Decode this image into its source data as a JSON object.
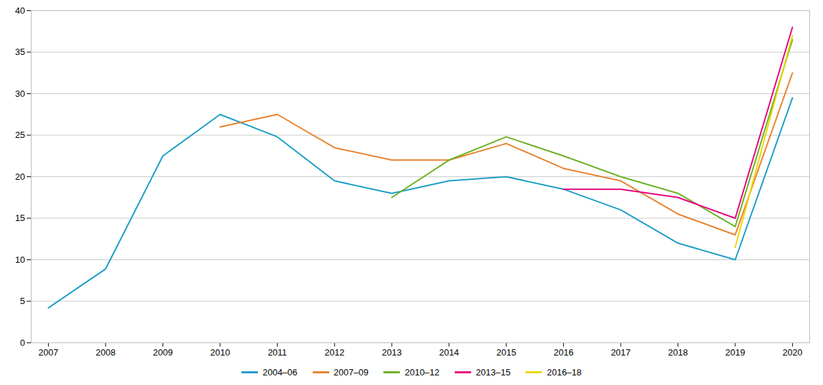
{
  "chart_data": {
    "type": "line",
    "x": [
      2007,
      2008,
      2009,
      2010,
      2011,
      2012,
      2013,
      2014,
      2015,
      2016,
      2017,
      2018,
      2019,
      2020
    ],
    "series": [
      {
        "name": "2004–06",
        "color": "#1B9DC6",
        "values": [
          4.2,
          8.9,
          22.5,
          27.5,
          24.8,
          19.5,
          18.0,
          19.5,
          20.0,
          18.5,
          16.0,
          12.0,
          10.0,
          29.5
        ]
      },
      {
        "name": "2007–09",
        "color": "#E8812A",
        "values": [
          null,
          null,
          null,
          26.0,
          27.5,
          23.5,
          22.0,
          22.0,
          24.0,
          21.0,
          19.5,
          15.5,
          13.0,
          32.5
        ]
      },
      {
        "name": "2010–12",
        "color": "#6AB023",
        "values": [
          null,
          null,
          null,
          null,
          null,
          null,
          17.5,
          22.0,
          24.8,
          22.5,
          20.0,
          18.0,
          14.0,
          36.5
        ]
      },
      {
        "name": "2013–15",
        "color": "#E8007D",
        "values": [
          null,
          null,
          null,
          null,
          null,
          null,
          null,
          null,
          null,
          18.5,
          18.5,
          17.5,
          15.0,
          38.0
        ]
      },
      {
        "name": "2016–18",
        "color": "#E8D800",
        "values": [
          null,
          null,
          null,
          null,
          null,
          null,
          null,
          null,
          null,
          null,
          null,
          null,
          11.5,
          37.0
        ]
      }
    ],
    "xlim": [
      2006.7,
      2020.3
    ],
    "ylim": [
      0,
      40
    ],
    "xticks": [
      2007,
      2008,
      2009,
      2010,
      2011,
      2012,
      2013,
      2014,
      2015,
      2016,
      2017,
      2018,
      2019,
      2020
    ],
    "yticks": [
      0,
      5,
      10,
      15,
      20,
      25,
      30,
      35,
      40
    ],
    "grid": true,
    "legend": "bottom"
  }
}
